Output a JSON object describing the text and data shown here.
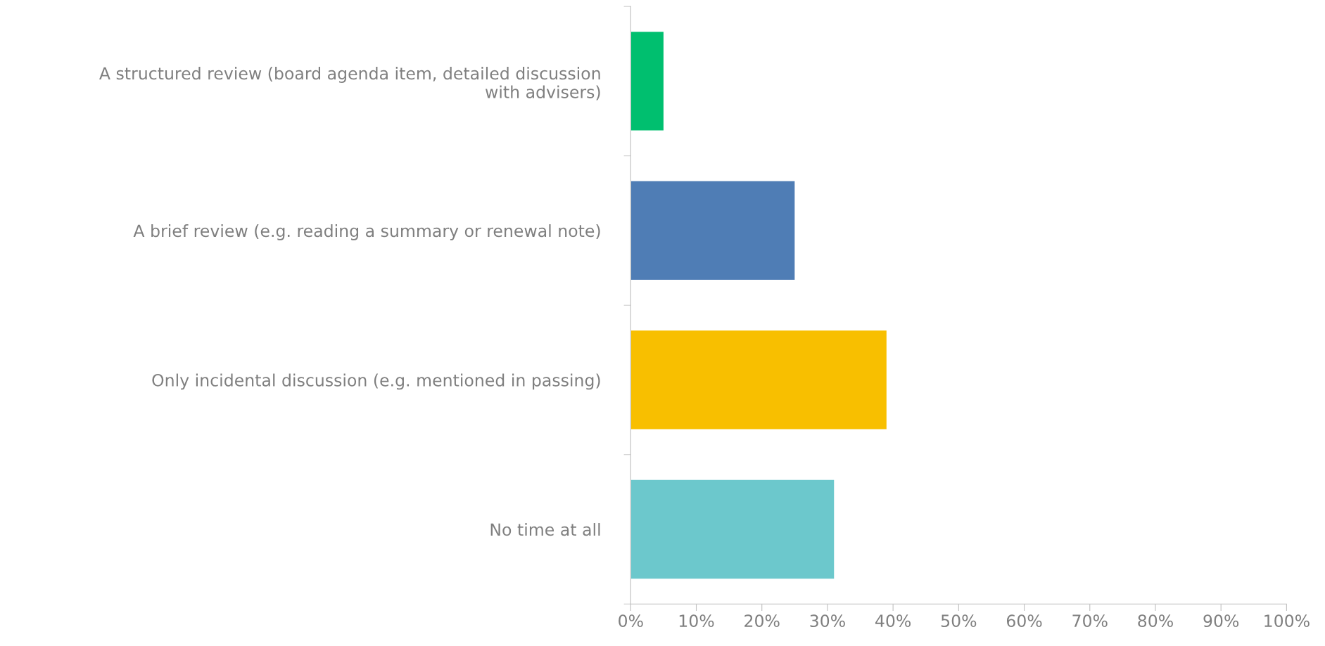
{
  "chart_data": {
    "type": "bar",
    "orientation": "horizontal",
    "categories": [
      "A structured review (board agenda item, detailed discussion\nwith advisers)",
      "A brief review (e.g. reading a summary or renewal note)",
      "Only incidental discussion (e.g. mentioned in passing)",
      "No time at all"
    ],
    "values": [
      5,
      25,
      39,
      31
    ],
    "colors": [
      "#00bf6f",
      "#4f7db5",
      "#f8bf00",
      "#6cc8cc"
    ],
    "xlim": [
      0,
      100
    ],
    "xticks": [
      {
        "value": 0,
        "label": "0%"
      },
      {
        "value": 10,
        "label": "10%"
      },
      {
        "value": 20,
        "label": "20%"
      },
      {
        "value": 30,
        "label": "30%"
      },
      {
        "value": 40,
        "label": "40%"
      },
      {
        "value": 50,
        "label": "50%"
      },
      {
        "value": 60,
        "label": "60%"
      },
      {
        "value": 70,
        "label": "70%"
      },
      {
        "value": 80,
        "label": "80%"
      },
      {
        "value": 90,
        "label": "90%"
      },
      {
        "value": 100,
        "label": "100%"
      }
    ],
    "grid": false,
    "legend": false
  }
}
